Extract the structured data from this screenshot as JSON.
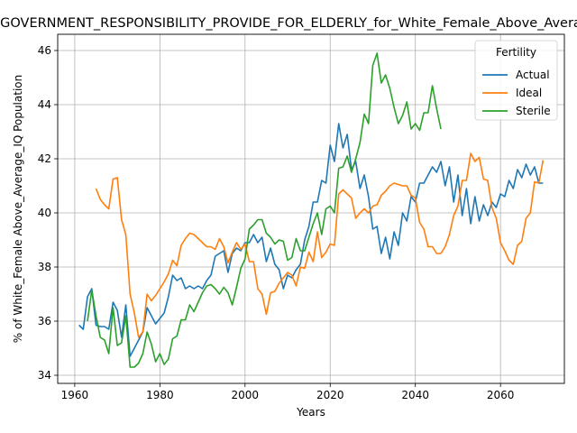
{
  "chart_data": {
    "type": "line",
    "title": "GOVERNMENT_RESPONSIBILITY_PROVIDE_FOR_ELDERLY_for_White_Female_Above_Average_IQ",
    "xlabel": "Years",
    "ylabel": "% of White_Female Above_Average_IQ Population",
    "xlim": [
      1956,
      2075
    ],
    "ylim": [
      33.7,
      46.6
    ],
    "xticks": [
      1960,
      1980,
      2000,
      2020,
      2040,
      2060
    ],
    "yticks": [
      34,
      36,
      38,
      40,
      42,
      44,
      46
    ],
    "grid": true,
    "legend": {
      "title": "Fertility",
      "placement": "top-right"
    },
    "series": [
      {
        "name": "Actual",
        "color": "#1f77b4",
        "points": [
          [
            1961,
            35.85
          ],
          [
            1962,
            35.7
          ],
          [
            1963,
            36.9
          ],
          [
            1964,
            37.2
          ],
          [
            1965,
            35.85
          ],
          [
            1966,
            35.8
          ],
          [
            1967,
            35.8
          ],
          [
            1968,
            35.7
          ],
          [
            1969,
            36.7
          ],
          [
            1970,
            36.4
          ],
          [
            1971,
            35.4
          ],
          [
            1972,
            36.6
          ],
          [
            1973,
            34.7
          ],
          [
            1974,
            35.0
          ],
          [
            1975,
            35.3
          ],
          [
            1976,
            35.6
          ],
          [
            1977,
            36.5
          ],
          [
            1978,
            36.2
          ],
          [
            1979,
            35.9
          ],
          [
            1980,
            36.1
          ],
          [
            1981,
            36.3
          ],
          [
            1982,
            36.9
          ],
          [
            1983,
            37.7
          ],
          [
            1984,
            37.5
          ],
          [
            1985,
            37.6
          ],
          [
            1986,
            37.2
          ],
          [
            1987,
            37.3
          ],
          [
            1988,
            37.2
          ],
          [
            1989,
            37.3
          ],
          [
            1990,
            37.2
          ],
          [
            1991,
            37.5
          ],
          [
            1992,
            37.7
          ],
          [
            1993,
            38.4
          ],
          [
            1994,
            38.5
          ],
          [
            1995,
            38.6
          ],
          [
            1996,
            37.8
          ],
          [
            1997,
            38.5
          ],
          [
            1998,
            38.7
          ],
          [
            1999,
            38.6
          ],
          [
            2000,
            38.9
          ],
          [
            2001,
            38.9
          ],
          [
            2002,
            39.2
          ],
          [
            2003,
            38.9
          ],
          [
            2004,
            39.1
          ],
          [
            2005,
            38.2
          ],
          [
            2006,
            38.7
          ],
          [
            2007,
            38.1
          ],
          [
            2008,
            37.9
          ],
          [
            2009,
            37.2
          ],
          [
            2010,
            37.7
          ],
          [
            2011,
            37.6
          ],
          [
            2012,
            37.9
          ],
          [
            2013,
            38.1
          ],
          [
            2014,
            39.0
          ],
          [
            2015,
            39.5
          ],
          [
            2016,
            40.4
          ],
          [
            2017,
            40.4
          ],
          [
            2018,
            41.2
          ],
          [
            2019,
            41.1
          ],
          [
            2020,
            42.5
          ],
          [
            2021,
            41.9
          ],
          [
            2022,
            43.3
          ],
          [
            2023,
            42.4
          ],
          [
            2024,
            42.9
          ],
          [
            2025,
            41.6
          ],
          [
            2026,
            41.9
          ],
          [
            2027,
            40.9
          ],
          [
            2028,
            41.4
          ],
          [
            2029,
            40.6
          ],
          [
            2030,
            39.4
          ],
          [
            2031,
            39.5
          ],
          [
            2032,
            38.5
          ],
          [
            2033,
            39.1
          ],
          [
            2034,
            38.3
          ],
          [
            2035,
            39.3
          ],
          [
            2036,
            38.8
          ],
          [
            2037,
            40.0
          ],
          [
            2038,
            39.7
          ],
          [
            2039,
            40.6
          ],
          [
            2040,
            40.4
          ],
          [
            2041,
            41.1
          ],
          [
            2042,
            41.1
          ],
          [
            2043,
            41.4
          ],
          [
            2044,
            41.7
          ],
          [
            2045,
            41.5
          ],
          [
            2046,
            41.9
          ],
          [
            2047,
            41.0
          ],
          [
            2048,
            41.7
          ],
          [
            2049,
            40.4
          ],
          [
            2050,
            41.4
          ],
          [
            2051,
            39.9
          ],
          [
            2052,
            40.9
          ],
          [
            2053,
            39.6
          ],
          [
            2054,
            40.6
          ],
          [
            2055,
            39.7
          ],
          [
            2056,
            40.3
          ],
          [
            2057,
            39.9
          ],
          [
            2058,
            40.4
          ],
          [
            2059,
            40.2
          ],
          [
            2060,
            40.7
          ],
          [
            2061,
            40.6
          ],
          [
            2062,
            41.2
          ],
          [
            2063,
            40.9
          ],
          [
            2064,
            41.6
          ],
          [
            2065,
            41.3
          ],
          [
            2066,
            41.8
          ],
          [
            2067,
            41.4
          ],
          [
            2068,
            41.7
          ],
          [
            2069,
            41.1
          ],
          [
            2070,
            41.1
          ]
        ]
      },
      {
        "name": "Ideal",
        "color": "#ff7f0e",
        "points": [
          [
            1965,
            40.9
          ],
          [
            1966,
            40.5
          ],
          [
            1967,
            40.3
          ],
          [
            1968,
            40.15
          ],
          [
            1969,
            41.25
          ],
          [
            1970,
            41.3
          ],
          [
            1971,
            39.75
          ],
          [
            1972,
            39.2
          ],
          [
            1973,
            37.0
          ],
          [
            1974,
            36.3
          ],
          [
            1975,
            35.4
          ],
          [
            1976,
            35.6
          ],
          [
            1977,
            37.0
          ],
          [
            1978,
            36.75
          ],
          [
            1979,
            36.95
          ],
          [
            1980,
            37.2
          ],
          [
            1981,
            37.45
          ],
          [
            1982,
            37.75
          ],
          [
            1983,
            38.25
          ],
          [
            1984,
            38.05
          ],
          [
            1985,
            38.8
          ],
          [
            1986,
            39.05
          ],
          [
            1987,
            39.25
          ],
          [
            1988,
            39.2
          ],
          [
            1989,
            39.05
          ],
          [
            1990,
            38.9
          ],
          [
            1991,
            38.75
          ],
          [
            1992,
            38.75
          ],
          [
            1993,
            38.65
          ],
          [
            1994,
            39.05
          ],
          [
            1995,
            38.75
          ],
          [
            1996,
            38.15
          ],
          [
            1997,
            38.55
          ],
          [
            1998,
            38.9
          ],
          [
            1999,
            38.65
          ],
          [
            2000,
            38.85
          ],
          [
            2001,
            38.2
          ],
          [
            2002,
            38.2
          ],
          [
            2003,
            37.2
          ],
          [
            2004,
            37.0
          ],
          [
            2005,
            36.25
          ],
          [
            2006,
            37.05
          ],
          [
            2007,
            37.1
          ],
          [
            2008,
            37.4
          ],
          [
            2009,
            37.6
          ],
          [
            2010,
            37.8
          ],
          [
            2011,
            37.7
          ],
          [
            2012,
            37.3
          ],
          [
            2013,
            38.0
          ],
          [
            2014,
            37.95
          ],
          [
            2015,
            38.55
          ],
          [
            2016,
            38.2
          ],
          [
            2017,
            39.3
          ],
          [
            2018,
            38.35
          ],
          [
            2019,
            38.55
          ],
          [
            2020,
            38.85
          ],
          [
            2021,
            38.8
          ],
          [
            2022,
            40.7
          ],
          [
            2023,
            40.85
          ],
          [
            2024,
            40.7
          ],
          [
            2025,
            40.55
          ],
          [
            2026,
            39.8
          ],
          [
            2027,
            40.0
          ],
          [
            2028,
            40.15
          ],
          [
            2029,
            40.0
          ],
          [
            2030,
            40.25
          ],
          [
            2031,
            40.3
          ],
          [
            2032,
            40.65
          ],
          [
            2033,
            40.8
          ],
          [
            2034,
            41.0
          ],
          [
            2035,
            41.1
          ],
          [
            2036,
            41.05
          ],
          [
            2037,
            41.0
          ],
          [
            2038,
            41.0
          ],
          [
            2039,
            40.65
          ],
          [
            2040,
            40.55
          ],
          [
            2041,
            39.65
          ],
          [
            2042,
            39.4
          ],
          [
            2043,
            38.75
          ],
          [
            2044,
            38.75
          ],
          [
            2045,
            38.5
          ],
          [
            2046,
            38.5
          ],
          [
            2047,
            38.75
          ],
          [
            2048,
            39.2
          ],
          [
            2049,
            39.9
          ],
          [
            2050,
            40.25
          ],
          [
            2051,
            41.2
          ],
          [
            2052,
            41.2
          ],
          [
            2053,
            42.2
          ],
          [
            2054,
            41.9
          ],
          [
            2055,
            42.05
          ],
          [
            2056,
            41.25
          ],
          [
            2057,
            41.2
          ],
          [
            2058,
            40.2
          ],
          [
            2059,
            39.8
          ],
          [
            2060,
            38.9
          ],
          [
            2061,
            38.6
          ],
          [
            2062,
            38.25
          ],
          [
            2063,
            38.1
          ],
          [
            2064,
            38.8
          ],
          [
            2065,
            38.95
          ],
          [
            2066,
            39.8
          ],
          [
            2067,
            40.0
          ],
          [
            2068,
            41.15
          ],
          [
            2069,
            41.1
          ],
          [
            2070,
            41.95
          ]
        ]
      },
      {
        "name": "Sterile",
        "color": "#2ca02c",
        "points": [
          [
            1963,
            36.0
          ],
          [
            1964,
            37.15
          ],
          [
            1965,
            36.2
          ],
          [
            1966,
            35.4
          ],
          [
            1967,
            35.3
          ],
          [
            1968,
            34.8
          ],
          [
            1969,
            36.5
          ],
          [
            1970,
            35.1
          ],
          [
            1971,
            35.2
          ],
          [
            1972,
            36.2
          ],
          [
            1973,
            34.3
          ],
          [
            1974,
            34.3
          ],
          [
            1975,
            34.45
          ],
          [
            1976,
            34.8
          ],
          [
            1977,
            35.6
          ],
          [
            1978,
            35.15
          ],
          [
            1979,
            34.5
          ],
          [
            1980,
            34.8
          ],
          [
            1981,
            34.4
          ],
          [
            1982,
            34.6
          ],
          [
            1983,
            35.35
          ],
          [
            1984,
            35.45
          ],
          [
            1985,
            36.05
          ],
          [
            1986,
            36.05
          ],
          [
            1987,
            36.6
          ],
          [
            1988,
            36.35
          ],
          [
            1989,
            36.7
          ],
          [
            1990,
            37.05
          ],
          [
            1991,
            37.3
          ],
          [
            1992,
            37.35
          ],
          [
            1993,
            37.2
          ],
          [
            1994,
            37.0
          ],
          [
            1995,
            37.25
          ],
          [
            1996,
            37.05
          ],
          [
            1997,
            36.6
          ],
          [
            1998,
            37.25
          ],
          [
            1999,
            37.95
          ],
          [
            2000,
            38.3
          ],
          [
            2001,
            39.4
          ],
          [
            2002,
            39.55
          ],
          [
            2003,
            39.75
          ],
          [
            2004,
            39.75
          ],
          [
            2005,
            39.25
          ],
          [
            2006,
            39.1
          ],
          [
            2007,
            38.85
          ],
          [
            2008,
            39.0
          ],
          [
            2009,
            38.95
          ],
          [
            2010,
            38.25
          ],
          [
            2011,
            38.35
          ],
          [
            2012,
            39.05
          ],
          [
            2013,
            38.6
          ],
          [
            2014,
            38.6
          ],
          [
            2015,
            39.1
          ],
          [
            2016,
            39.6
          ],
          [
            2017,
            40.0
          ],
          [
            2018,
            39.2
          ],
          [
            2019,
            40.15
          ],
          [
            2020,
            40.25
          ],
          [
            2021,
            40.0
          ],
          [
            2022,
            41.65
          ],
          [
            2023,
            41.7
          ],
          [
            2024,
            42.1
          ],
          [
            2025,
            41.5
          ],
          [
            2026,
            42.0
          ],
          [
            2027,
            42.6
          ],
          [
            2028,
            43.65
          ],
          [
            2029,
            43.3
          ],
          [
            2030,
            45.45
          ],
          [
            2031,
            45.9
          ],
          [
            2032,
            44.8
          ],
          [
            2033,
            45.1
          ],
          [
            2034,
            44.6
          ],
          [
            2035,
            43.9
          ],
          [
            2036,
            43.3
          ],
          [
            2037,
            43.6
          ],
          [
            2038,
            44.1
          ],
          [
            2039,
            43.1
          ],
          [
            2040,
            43.3
          ],
          [
            2041,
            43.05
          ],
          [
            2042,
            43.7
          ],
          [
            2043,
            43.7
          ],
          [
            2044,
            44.7
          ],
          [
            2045,
            43.85
          ],
          [
            2046,
            43.1
          ]
        ]
      }
    ]
  }
}
